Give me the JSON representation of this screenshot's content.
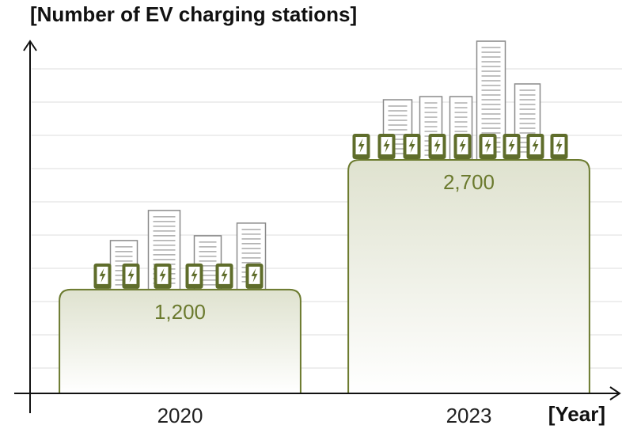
{
  "chart_data": {
    "type": "bar",
    "y_label": "[Number of EV charging stations]",
    "x_label": "[Year]",
    "categories": [
      "2020",
      "2023"
    ],
    "values": [
      1200,
      2700
    ],
    "value_labels": [
      "1,200",
      "2,700"
    ],
    "color": "#6b7a2e",
    "ylim": [
      0,
      4000
    ]
  }
}
